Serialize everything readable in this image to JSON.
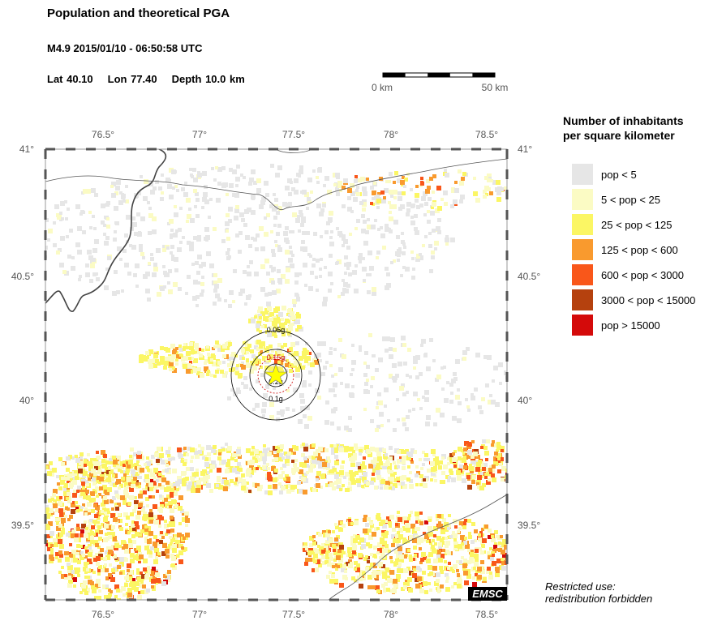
{
  "header": {
    "title": "Population and theoretical PGA",
    "event": "M4.9  2015/01/10 - 06:50:58 UTC",
    "lat": "Lat 40.10",
    "lon": "Lon  77.40",
    "depth": "Depth  10.0 km"
  },
  "scale_bar": {
    "start": "0 km",
    "end": "50 km"
  },
  "map": {
    "lon_range": [
      76.2,
      78.65
    ],
    "lat_range": [
      39.2,
      41.0
    ],
    "lon_ticks": [
      "76.5°",
      "77°",
      "77.5°",
      "78°",
      "78.5°"
    ],
    "lat_ticks": [
      "41°",
      "40.5°",
      "40°",
      "39.5°"
    ],
    "epicenter": {
      "lon": 77.4,
      "lat": 40.1
    },
    "pga_circles": [
      {
        "label": "0.05g",
        "color": "#000000"
      },
      {
        "label": "0.15g",
        "color": "#cc0000"
      },
      {
        "label": "0.2g",
        "color": "#000000"
      },
      {
        "label": "0.1g",
        "color": "#000000"
      }
    ]
  },
  "legend": {
    "title_line1": "Number of inhabitants",
    "title_line2": "per square kilometer",
    "items": [
      {
        "label": "pop < 5",
        "color": "#e6e6e6"
      },
      {
        "label": "5 < pop < 25",
        "color": "#fbfbc4"
      },
      {
        "label": "25 < pop < 125",
        "color": "#fbf664"
      },
      {
        "label": "125 < pop < 600",
        "color": "#f99a2e"
      },
      {
        "label": "600 < pop < 3000",
        "color": "#f9571a"
      },
      {
        "label": "3000 < pop < 15000",
        "color": "#b5410e"
      },
      {
        "label": "pop > 15000",
        "color": "#d40a0a"
      }
    ]
  },
  "footer": {
    "badge": "EMSC",
    "restricted_line1": "Restricted use:",
    "restricted_line2": "redistribution forbidden"
  }
}
